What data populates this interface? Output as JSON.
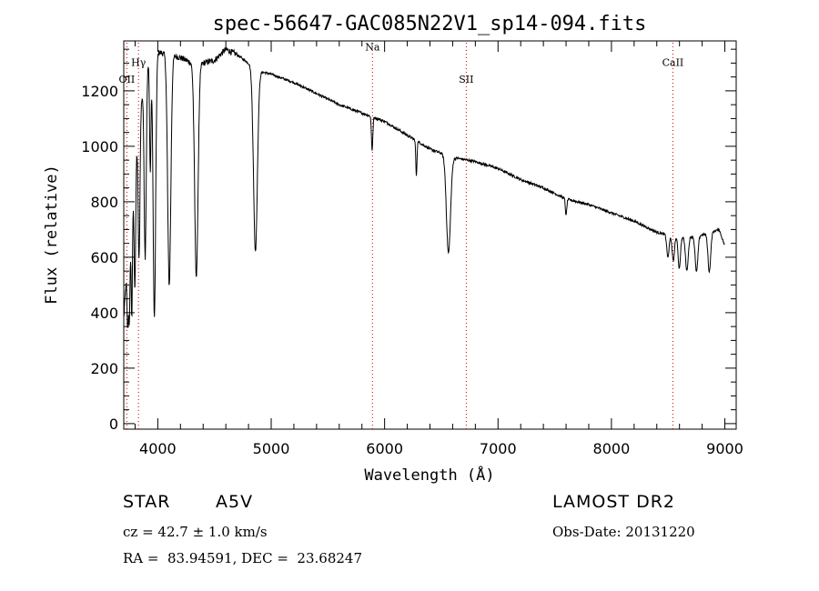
{
  "chart_data": {
    "type": "line",
    "title": "spec-56647-GAC085N22V1_sp14-094.fits",
    "xlabel": "Wavelength (Å)",
    "ylabel": "Flux (relative)",
    "xlim": [
      3700,
      9100
    ],
    "ylim": [
      -20,
      1380
    ],
    "xticks": [
      4000,
      5000,
      6000,
      7000,
      8000,
      9000
    ],
    "yticks": [
      0,
      200,
      400,
      600,
      800,
      1000,
      1200
    ],
    "grid": false,
    "line_color": "#000000",
    "marker_color": "#cc0000",
    "continuum": [
      [
        3700,
        380
      ],
      [
        3750,
        700
      ],
      [
        3800,
        950
      ],
      [
        3850,
        1150
      ],
      [
        3900,
        1280
      ],
      [
        3950,
        1320
      ],
      [
        4000,
        1340
      ],
      [
        4100,
        1330
      ],
      [
        4200,
        1320
      ],
      [
        4300,
        1300
      ],
      [
        4400,
        1300
      ],
      [
        4500,
        1310
      ],
      [
        4600,
        1350
      ],
      [
        4700,
        1330
      ],
      [
        4800,
        1300
      ],
      [
        4900,
        1270
      ],
      [
        5000,
        1260
      ],
      [
        5200,
        1230
      ],
      [
        5400,
        1190
      ],
      [
        5600,
        1150
      ],
      [
        5800,
        1120
      ],
      [
        6000,
        1090
      ],
      [
        6200,
        1040
      ],
      [
        6400,
        990
      ],
      [
        6600,
        960
      ],
      [
        6800,
        945
      ],
      [
        7000,
        920
      ],
      [
        7200,
        880
      ],
      [
        7400,
        850
      ],
      [
        7600,
        810
      ],
      [
        7800,
        790
      ],
      [
        8000,
        760
      ],
      [
        8200,
        730
      ],
      [
        8400,
        690
      ],
      [
        8600,
        670
      ],
      [
        8800,
        680
      ],
      [
        8950,
        700
      ],
      [
        9000,
        640
      ]
    ],
    "absorption_lines": [
      {
        "wavelength": 3735,
        "depth": 250,
        "width": 6
      },
      {
        "wavelength": 3750,
        "depth": 320,
        "width": 6
      },
      {
        "wavelength": 3771,
        "depth": 420,
        "width": 6
      },
      {
        "wavelength": 3798,
        "depth": 450,
        "width": 7
      },
      {
        "wavelength": 3835,
        "depth": 500,
        "width": 8
      },
      {
        "wavelength": 3889,
        "depth": 650,
        "width": 9
      },
      {
        "wavelength": 3934,
        "depth": 400,
        "width": 6
      },
      {
        "wavelength": 3970,
        "depth": 950,
        "width": 11
      },
      {
        "wavelength": 4101,
        "depth": 830,
        "width": 14
      },
      {
        "wavelength": 4340,
        "depth": 770,
        "width": 15
      },
      {
        "wavelength": 4861,
        "depth": 660,
        "width": 17
      },
      {
        "wavelength": 5890,
        "depth": 120,
        "width": 6
      },
      {
        "wavelength": 6280,
        "depth": 130,
        "width": 5
      },
      {
        "wavelength": 6563,
        "depth": 350,
        "width": 18
      },
      {
        "wavelength": 7600,
        "depth": 60,
        "width": 6
      },
      {
        "wavelength": 8498,
        "depth": 80,
        "width": 10
      },
      {
        "wavelength": 8545,
        "depth": 90,
        "width": 10
      },
      {
        "wavelength": 8598,
        "depth": 110,
        "width": 10
      },
      {
        "wavelength": 8665,
        "depth": 120,
        "width": 12
      },
      {
        "wavelength": 8750,
        "depth": 130,
        "width": 12
      },
      {
        "wavelength": 8863,
        "depth": 140,
        "width": 12
      }
    ],
    "line_markers": [
      {
        "label": "OII",
        "wavelength": 3727,
        "label_flux": 1230
      },
      {
        "label": "Hγ",
        "wavelength": 3830,
        "label_flux": 1290
      },
      {
        "label": "Na",
        "wavelength": 5893,
        "label_flux": 1345
      },
      {
        "label": "SII",
        "wavelength": 6720,
        "label_flux": 1230
      },
      {
        "label": "CaII",
        "wavelength": 8542,
        "label_flux": 1290
      }
    ]
  },
  "info": {
    "object_type": "STAR",
    "spectral_class": "A5V",
    "survey": "LAMOST DR2",
    "redshift_line": "cz = 42.7 ± 1.0 km/s",
    "obs_date_line": "Obs-Date: 20131220",
    "coords_line": "RA =  83.94591, DEC =  23.68247"
  }
}
